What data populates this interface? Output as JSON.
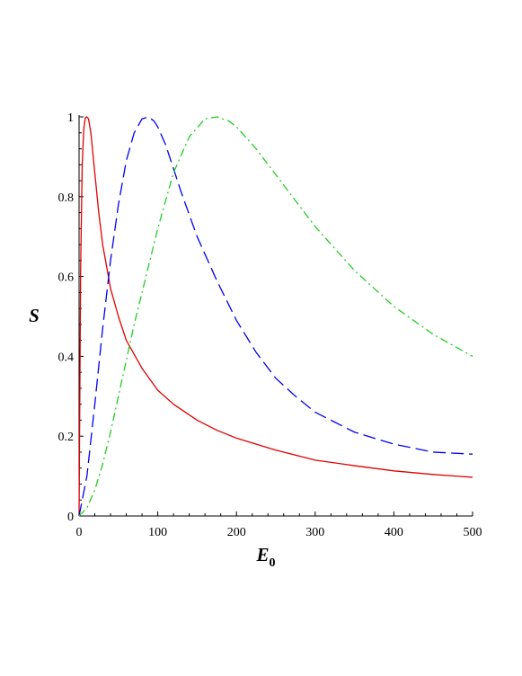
{
  "chart_data": {
    "type": "line",
    "title": "",
    "xlabel": "E",
    "xlabel_subscript": "0",
    "ylabel": "S",
    "xlim": [
      0,
      500
    ],
    "ylim": [
      0,
      1
    ],
    "x_ticks": [
      0,
      100,
      200,
      300,
      400,
      500
    ],
    "y_ticks": [
      0,
      0.2,
      0.4,
      0.6,
      0.8,
      1
    ],
    "x_tick_labels": [
      "0",
      "100",
      "200",
      "300",
      "400",
      "500"
    ],
    "y_tick_labels": [
      "0",
      "0.2",
      "0.4",
      "0.6",
      "0.8",
      "1"
    ],
    "grid": false,
    "legend": "none",
    "series": [
      {
        "color": "#e00000",
        "dash": "solid",
        "x": [
          0,
          2,
          4,
          6,
          8,
          10,
          12,
          15,
          20,
          25,
          30,
          40,
          50,
          60,
          70,
          80,
          100,
          120,
          150,
          175,
          200,
          250,
          300,
          350,
          400,
          450,
          500
        ],
        "y": [
          0,
          0.62,
          0.88,
          0.97,
          0.998,
          1.0,
          0.995,
          0.96,
          0.86,
          0.76,
          0.68,
          0.57,
          0.5,
          0.44,
          0.405,
          0.37,
          0.315,
          0.28,
          0.24,
          0.215,
          0.195,
          0.165,
          0.14,
          0.126,
          0.113,
          0.104,
          0.097
        ]
      },
      {
        "color": "#0000ee",
        "dash": "long-dash",
        "x": [
          0,
          10,
          20,
          30,
          40,
          50,
          60,
          70,
          80,
          88,
          95,
          100,
          110,
          120,
          130,
          150,
          175,
          200,
          225,
          250,
          275,
          300,
          350,
          400,
          450,
          500
        ],
        "y": [
          0,
          0.1,
          0.28,
          0.47,
          0.64,
          0.78,
          0.89,
          0.96,
          0.995,
          1.0,
          0.99,
          0.975,
          0.93,
          0.87,
          0.81,
          0.7,
          0.59,
          0.49,
          0.41,
          0.345,
          0.3,
          0.26,
          0.21,
          0.18,
          0.16,
          0.155
        ]
      },
      {
        "color": "#22cc22",
        "dash": "dash-dot",
        "x": [
          0,
          10,
          20,
          30,
          40,
          50,
          60,
          70,
          80,
          90,
          100,
          120,
          140,
          160,
          175,
          190,
          200,
          225,
          250,
          275,
          300,
          325,
          350,
          375,
          400,
          450,
          500
        ],
        "y": [
          0,
          0.02,
          0.065,
          0.13,
          0.21,
          0.3,
          0.39,
          0.48,
          0.56,
          0.64,
          0.72,
          0.86,
          0.95,
          0.995,
          1.0,
          0.99,
          0.975,
          0.92,
          0.855,
          0.79,
          0.725,
          0.67,
          0.615,
          0.57,
          0.525,
          0.455,
          0.4
        ]
      }
    ]
  }
}
